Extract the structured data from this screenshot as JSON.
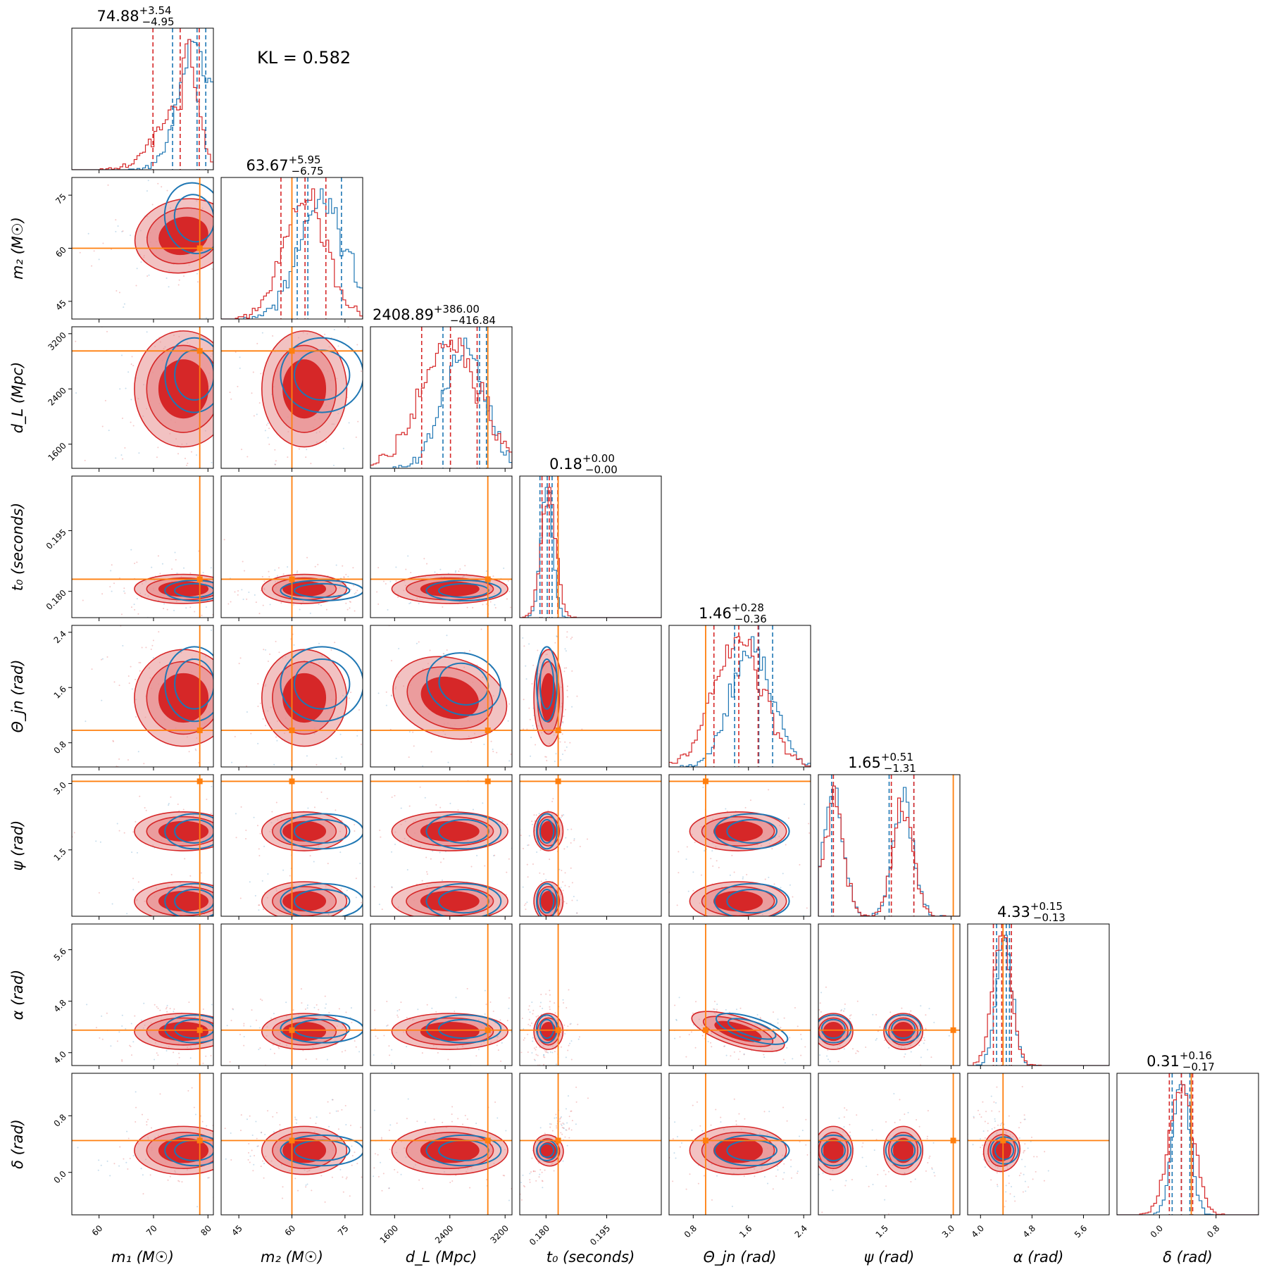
{
  "chart_data": {
    "type": "scatter",
    "title": "",
    "kl_label": "KL = 0.582",
    "colors": {
      "posterior_a": "#d62728",
      "posterior_b": "#1f77b4",
      "truth": "#ff7f0e",
      "fill_inner": "#d62728",
      "fill_outer": "#e88f90"
    },
    "parameters": [
      {
        "key": "m1",
        "label": "m₁ (M☉)",
        "range": [
          55,
          81
        ],
        "ticks": [
          60,
          70,
          80
        ],
        "truth": 78.5,
        "summary": {
          "median": "74.88",
          "plus": "+3.54",
          "minus": "−4.95"
        },
        "hist_a": {
          "mean": 75.5,
          "sd": 4.5,
          "skew": "left"
        },
        "hist_b": {
          "mean": 77.5,
          "sd": 3.0
        },
        "quantiles_a": [
          69.9,
          74.9,
          78.4
        ],
        "quantiles_b": [
          73.5,
          78.0,
          79.6
        ]
      },
      {
        "key": "m2",
        "label": "m₂ (M☉)",
        "range": [
          40,
          80
        ],
        "ticks": [
          45,
          60,
          75
        ],
        "truth": 60,
        "summary": {
          "median": "63.67",
          "plus": "+5.95",
          "minus": "−6.75"
        },
        "hist_a": {
          "mean": 63.5,
          "sd": 6.0
        },
        "hist_b": {
          "mean": 68.5,
          "sd": 6.5
        },
        "quantiles_a": [
          56.9,
          63.7,
          69.6
        ],
        "quantiles_b": [
          61.5,
          64.5,
          74.0
        ]
      },
      {
        "key": "dL",
        "label": "d_L (Mpc)",
        "range": [
          1250,
          3300
        ],
        "ticks": [
          1600,
          2400,
          3200
        ],
        "truth": 2950,
        "summary": {
          "median": "2408.89",
          "plus": "+386.00",
          "minus": "−416.84"
        },
        "hist_a": {
          "mean": 2400,
          "sd": 420
        },
        "hist_b": {
          "mean": 2600,
          "sd": 300
        },
        "quantiles_a": [
          1992,
          2409,
          2795
        ],
        "quantiles_b": [
          2300,
          2830,
          2930
        ]
      },
      {
        "key": "t0",
        "label": "t₀ (seconds)",
        "range": [
          0.1735,
          0.2085
        ],
        "ticks": [
          0.18,
          0.195
        ],
        "truth": 0.183,
        "summary": {
          "median": "0.18",
          "plus": "+0.00",
          "minus": "−0.00"
        },
        "hist_a": {
          "mean": 0.1806,
          "sd": 0.0018
        },
        "hist_b": {
          "mean": 0.1802,
          "sd": 0.0014
        },
        "quantiles_a": [
          0.179,
          0.1808,
          0.1829
        ],
        "quantiles_b": [
          0.1785,
          0.1803,
          0.1815
        ]
      },
      {
        "key": "theta",
        "label": "Θ_jn (rad)",
        "range": [
          0.45,
          2.5
        ],
        "ticks": [
          0.8,
          1.6,
          2.4
        ],
        "truth": 0.98,
        "summary": {
          "median": "1.46",
          "plus": "+0.28",
          "minus": "−0.36"
        },
        "hist_a": {
          "mean": 1.45,
          "sd": 0.35
        },
        "hist_b": {
          "mean": 1.65,
          "sd": 0.3
        },
        "quantiles_a": [
          1.1,
          1.46,
          1.74
        ],
        "quantiles_b": [
          1.4,
          1.75,
          1.95
        ]
      },
      {
        "key": "psi",
        "label": "ψ (rad)",
        "range": [
          0,
          3.2
        ],
        "ticks": [
          1.5,
          3.0
        ],
        "truth": 3.05,
        "summary": {
          "median": "1.65",
          "plus": "+0.51",
          "minus": "−1.31"
        },
        "hist_a": {
          "mean": 1.65,
          "sd": 0.9,
          "bimodal": [
            0.34,
            1.92
          ]
        },
        "hist_b": {
          "mean": 1.65,
          "sd": 0.9,
          "bimodal": [
            0.34,
            1.92
          ]
        },
        "quantiles_a": [
          0.34,
          1.65,
          2.16
        ],
        "quantiles_b": [
          0.3,
          1.6,
          2.16
        ]
      },
      {
        "key": "alpha",
        "label": "α (rad)",
        "range": [
          3.8,
          6.0
        ],
        "ticks": [
          4.0,
          4.8,
          5.6
        ],
        "truth": 4.35,
        "summary": {
          "median": "4.33",
          "plus": "+0.15",
          "minus": "−0.13"
        },
        "hist_a": {
          "mean": 4.33,
          "sd": 0.14
        },
        "hist_b": {
          "mean": 4.37,
          "sd": 0.12
        },
        "quantiles_a": [
          4.2,
          4.33,
          4.48
        ],
        "quantiles_b": [
          4.25,
          4.4,
          4.45
        ]
      },
      {
        "key": "delta",
        "label": "δ (rad)",
        "range": [
          -0.6,
          1.4
        ],
        "ticks": [
          0.0,
          0.8
        ],
        "truth": 0.45,
        "summary": {
          "median": "0.31",
          "plus": "+0.16",
          "minus": "−0.17"
        },
        "hist_a": {
          "mean": 0.31,
          "sd": 0.17
        },
        "hist_b": {
          "mean": 0.31,
          "sd": 0.12
        },
        "quantiles_a": [
          0.14,
          0.31,
          0.47
        ],
        "quantiles_b": [
          0.18,
          0.31,
          0.43
        ]
      }
    ],
    "tick_text": {
      "m1": [
        "60",
        "70",
        "80"
      ],
      "m2": [
        "45",
        "60",
        "75"
      ],
      "dL": [
        "1600",
        "2400",
        "3200"
      ],
      "t0": [
        "0.180",
        "0.195"
      ],
      "theta": [
        "0.8",
        "1.6",
        "2.4"
      ],
      "psi": [
        "1.5",
        "3.0"
      ],
      "alpha": [
        "4.0",
        "4.8",
        "5.6"
      ],
      "delta": [
        "0.0",
        "0.8"
      ]
    },
    "correlations": {
      "t0|delta": 0.85,
      "dL|theta": -0.45,
      "theta|alpha": -0.5,
      "m1|m2": 0.35,
      "alpha|delta": -0.3
    }
  }
}
